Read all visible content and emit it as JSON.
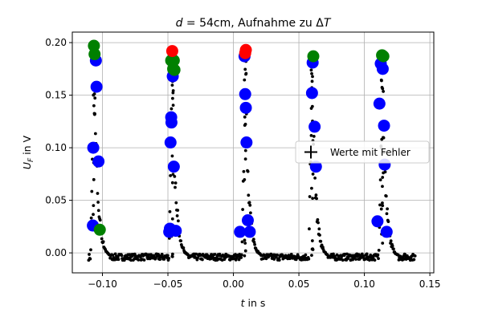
{
  "chart_data": {
    "type": "scatter",
    "title": "d = 54cm, Aufnahme zu ΔT",
    "xlabel": "t in s",
    "ylabel": "U_F in V",
    "xlim": [
      -0.123,
      0.153
    ],
    "ylim": [
      -0.019,
      0.21
    ],
    "xticks": [
      -0.1,
      -0.05,
      0.0,
      0.05,
      0.1,
      0.15
    ],
    "xtick_labels": [
      "−0.10",
      "−0.05",
      "0.00",
      "0.05",
      "0.10",
      "0.15"
    ],
    "yticks": [
      0.0,
      0.05,
      0.1,
      0.15,
      0.2
    ],
    "ytick_labels": [
      "0.00",
      "0.05",
      "0.10",
      "0.15",
      "0.20"
    ],
    "grid": true,
    "legend": {
      "position": "right",
      "entries": [
        {
          "label": "Werte mit Fehler",
          "marker": "+"
        }
      ]
    },
    "colors": {
      "points": "#000000",
      "blue": "#0000ff",
      "green": "#008000",
      "red": "#ff0000",
      "grid": "#b0b0b0"
    },
    "baseline": -0.004,
    "pulses": [
      {
        "peak_t": -0.1065,
        "peak_v": 0.197,
        "decay": 0.0027
      },
      {
        "peak_t": -0.0467,
        "peak_v": 0.192,
        "decay": 0.0027
      },
      {
        "peak_t": 0.009,
        "peak_v": 0.193,
        "decay": 0.0027
      },
      {
        "peak_t": 0.06,
        "peak_v": 0.188,
        "decay": 0.0027
      },
      {
        "peak_t": 0.1135,
        "peak_v": 0.188,
        "decay": 0.0027
      }
    ],
    "series": [
      {
        "name": "blue",
        "points": [
          [
            -0.1073,
            0.026
          ],
          [
            -0.105,
            0.183
          ],
          [
            -0.1045,
            0.158
          ],
          [
            -0.107,
            0.1
          ],
          [
            -0.103,
            0.087
          ],
          [
            -0.049,
            0.02
          ],
          [
            -0.0485,
            0.023
          ],
          [
            -0.048,
            0.105
          ],
          [
            -0.0475,
            0.129
          ],
          [
            -0.0473,
            0.124
          ],
          [
            -0.0463,
            0.168
          ],
          [
            -0.0455,
            0.082
          ],
          [
            -0.044,
            0.021
          ],
          [
            0.005,
            0.02
          ],
          [
            0.0085,
            0.187
          ],
          [
            0.009,
            0.151
          ],
          [
            0.0095,
            0.138
          ],
          [
            0.01,
            0.105
          ],
          [
            0.011,
            0.031
          ],
          [
            0.0125,
            0.02
          ],
          [
            0.06,
            0.152
          ],
          [
            0.0605,
            0.181
          ],
          [
            0.062,
            0.12
          ],
          [
            0.063,
            0.082
          ],
          [
            0.11,
            0.03
          ],
          [
            0.1115,
            0.142
          ],
          [
            0.1125,
            0.18
          ],
          [
            0.114,
            0.175
          ],
          [
            0.115,
            0.121
          ],
          [
            0.1155,
            0.084
          ],
          [
            0.117,
            0.02
          ]
        ]
      },
      {
        "name": "green",
        "points": [
          [
            -0.1065,
            0.197
          ],
          [
            -0.106,
            0.189
          ],
          [
            -0.102,
            0.022
          ],
          [
            -0.0475,
            0.183
          ],
          [
            -0.046,
            0.175
          ],
          [
            -0.0455,
            0.183
          ],
          [
            -0.045,
            0.174
          ],
          [
            0.061,
            0.187
          ],
          [
            0.1135,
            0.188
          ],
          [
            0.1145,
            0.187
          ]
        ]
      },
      {
        "name": "red",
        "points": [
          [
            -0.0467,
            0.192
          ],
          [
            0.0095,
            0.193
          ],
          [
            0.009,
            0.19
          ]
        ]
      }
    ]
  }
}
